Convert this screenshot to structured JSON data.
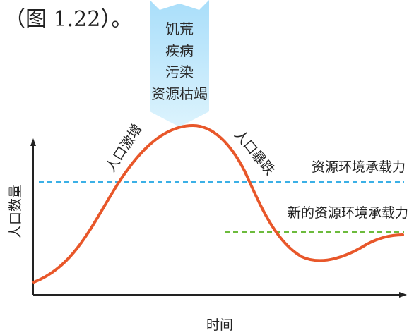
{
  "caption": "（图 1.22）。",
  "pressure_factors": [
    "饥荒",
    "疾病",
    "污染",
    "资源枯竭"
  ],
  "curve_labels": {
    "rise": "人口激增",
    "fall": "人口暴跌"
  },
  "capacity_lines": {
    "original": "资源环境承载力",
    "new": "新的资源环境承载力"
  },
  "axes": {
    "y_label": "人口数量",
    "x_label": "时间"
  },
  "colors": {
    "curve": "#e8572a",
    "original_capacity_line": "#3bb0e6",
    "new_capacity_line": "#6cbb3c",
    "arrow_fill": "#c9ecfb",
    "axis": "#222222"
  }
}
